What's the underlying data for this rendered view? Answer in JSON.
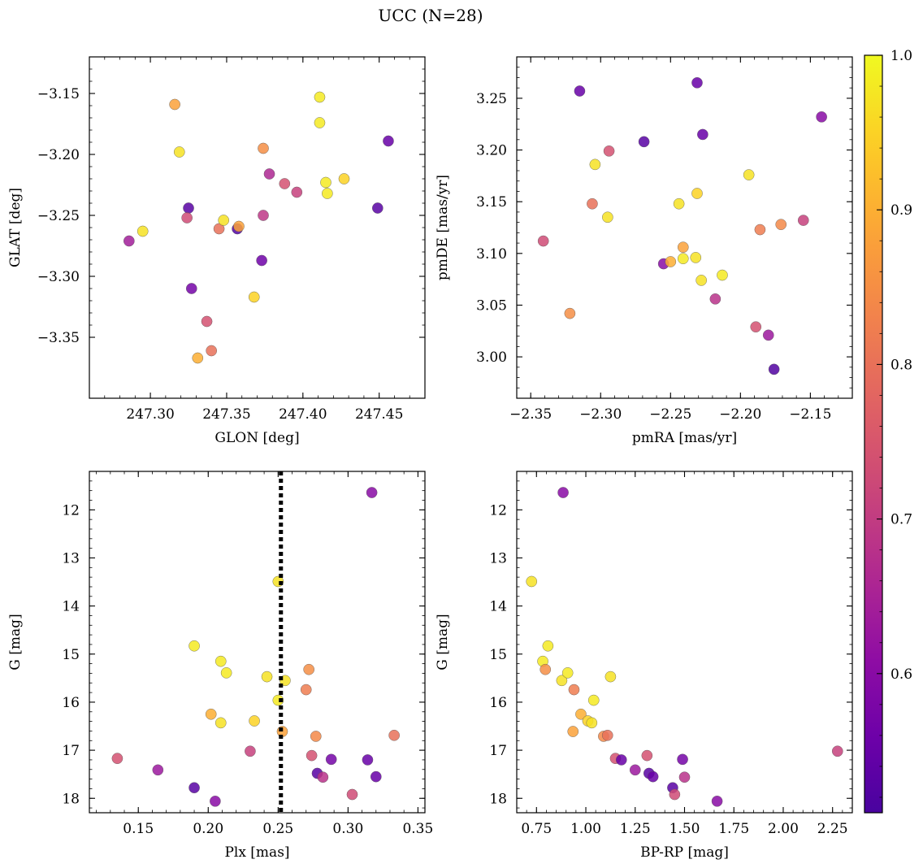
{
  "title": "UCC (N=28)",
  "chart_data": [
    {
      "type": "scatter",
      "xlabel": "GLON [deg]",
      "ylabel": "GLAT [deg]",
      "xlim": [
        247.26,
        247.48
      ],
      "ylim": [
        -3.4,
        -3.12
      ],
      "xticks": [
        247.3,
        247.35,
        247.4,
        247.45
      ],
      "xtick_labels": [
        "247.30",
        "247.35",
        "247.40",
        "247.45"
      ],
      "yticks": [
        -3.15,
        -3.2,
        -3.25,
        -3.3,
        -3.35
      ],
      "ytick_labels": [
        "−3.15",
        "−3.20",
        "−3.25",
        "−3.30",
        "−3.35"
      ],
      "points": [
        {
          "x": 247.286,
          "y": -3.271,
          "c": 0.64
        },
        {
          "x": 247.295,
          "y": -3.263,
          "c": 0.97
        },
        {
          "x": 247.316,
          "y": -3.159,
          "c": 0.88
        },
        {
          "x": 247.319,
          "y": -3.198,
          "c": 0.97
        },
        {
          "x": 247.325,
          "y": -3.244,
          "c": 0.53
        },
        {
          "x": 247.324,
          "y": -3.252,
          "c": 0.73
        },
        {
          "x": 247.327,
          "y": -3.31,
          "c": 0.57
        },
        {
          "x": 247.331,
          "y": -3.367,
          "c": 0.9
        },
        {
          "x": 247.337,
          "y": -3.337,
          "c": 0.74
        },
        {
          "x": 247.34,
          "y": -3.361,
          "c": 0.8
        },
        {
          "x": 247.345,
          "y": -3.261,
          "c": 0.8
        },
        {
          "x": 247.348,
          "y": -3.254,
          "c": 0.97
        },
        {
          "x": 247.357,
          "y": -3.261,
          "c": 0.52
        },
        {
          "x": 247.358,
          "y": -3.259,
          "c": 0.88
        },
        {
          "x": 247.368,
          "y": -3.317,
          "c": 0.95
        },
        {
          "x": 247.373,
          "y": -3.287,
          "c": 0.56
        },
        {
          "x": 247.374,
          "y": -3.25,
          "c": 0.69
        },
        {
          "x": 247.374,
          "y": -3.195,
          "c": 0.85
        },
        {
          "x": 247.378,
          "y": -3.216,
          "c": 0.66
        },
        {
          "x": 247.388,
          "y": -3.224,
          "c": 0.74
        },
        {
          "x": 247.396,
          "y": -3.231,
          "c": 0.71
        },
        {
          "x": 247.411,
          "y": -3.153,
          "c": 0.98
        },
        {
          "x": 247.411,
          "y": -3.174,
          "c": 0.98
        },
        {
          "x": 247.415,
          "y": -3.223,
          "c": 0.98
        },
        {
          "x": 247.416,
          "y": -3.232,
          "c": 0.98
        },
        {
          "x": 247.427,
          "y": -3.22,
          "c": 0.95
        },
        {
          "x": 247.449,
          "y": -3.244,
          "c": 0.53
        },
        {
          "x": 247.456,
          "y": -3.189,
          "c": 0.55
        }
      ]
    },
    {
      "type": "scatter",
      "xlabel": "pmRA [mas/yr]",
      "ylabel": "pmDE [mas/yr]",
      "xlim": [
        -2.36,
        -2.12
      ],
      "ylim": [
        2.96,
        3.29
      ],
      "xticks": [
        -2.35,
        -2.3,
        -2.25,
        -2.2,
        -2.15
      ],
      "xtick_labels": [
        "−2.35",
        "−2.30",
        "−2.25",
        "−2.20",
        "−2.15"
      ],
      "yticks": [
        3.0,
        3.05,
        3.1,
        3.15,
        3.2,
        3.25
      ],
      "ytick_labels": [
        "3.00",
        "3.05",
        "3.10",
        "3.15",
        "3.20",
        "3.25"
      ],
      "points": [
        {
          "x": -2.341,
          "y": 3.112,
          "c": 0.73
        },
        {
          "x": -2.322,
          "y": 3.042,
          "c": 0.85
        },
        {
          "x": -2.315,
          "y": 3.257,
          "c": 0.55
        },
        {
          "x": -2.306,
          "y": 3.148,
          "c": 0.8
        },
        {
          "x": -2.304,
          "y": 3.186,
          "c": 0.97
        },
        {
          "x": -2.295,
          "y": 3.135,
          "c": 0.97
        },
        {
          "x": -2.294,
          "y": 3.199,
          "c": 0.74
        },
        {
          "x": -2.269,
          "y": 3.208,
          "c": 0.53
        },
        {
          "x": -2.255,
          "y": 3.09,
          "c": 0.6
        },
        {
          "x": -2.25,
          "y": 3.092,
          "c": 0.9
        },
        {
          "x": -2.244,
          "y": 3.148,
          "c": 0.97
        },
        {
          "x": -2.241,
          "y": 3.106,
          "c": 0.88
        },
        {
          "x": -2.241,
          "y": 3.095,
          "c": 0.98
        },
        {
          "x": -2.232,
          "y": 3.096,
          "c": 0.97
        },
        {
          "x": -2.231,
          "y": 3.158,
          "c": 0.95
        },
        {
          "x": -2.231,
          "y": 3.265,
          "c": 0.55
        },
        {
          "x": -2.228,
          "y": 3.074,
          "c": 0.97
        },
        {
          "x": -2.227,
          "y": 3.215,
          "c": 0.55
        },
        {
          "x": -2.218,
          "y": 3.056,
          "c": 0.68
        },
        {
          "x": -2.213,
          "y": 3.079,
          "c": 0.98
        },
        {
          "x": -2.194,
          "y": 3.176,
          "c": 0.97
        },
        {
          "x": -2.189,
          "y": 3.029,
          "c": 0.74
        },
        {
          "x": -2.186,
          "y": 3.123,
          "c": 0.82
        },
        {
          "x": -2.18,
          "y": 3.021,
          "c": 0.63
        },
        {
          "x": -2.176,
          "y": 2.988,
          "c": 0.52
        },
        {
          "x": -2.171,
          "y": 3.128,
          "c": 0.84
        },
        {
          "x": -2.155,
          "y": 3.132,
          "c": 0.71
        },
        {
          "x": -2.142,
          "y": 3.232,
          "c": 0.6
        }
      ]
    },
    {
      "type": "scatter",
      "xlabel": "Plx [mas]",
      "ylabel": "G [mag]",
      "xlim": [
        0.115,
        0.355
      ],
      "ylim": [
        18.3,
        11.2
      ],
      "xticks": [
        0.15,
        0.2,
        0.25,
        0.3,
        0.35
      ],
      "xtick_labels": [
        "0.15",
        "0.20",
        "0.25",
        "0.30",
        "0.35"
      ],
      "yticks": [
        12,
        13,
        14,
        15,
        16,
        17,
        18
      ],
      "ytick_labels": [
        "12",
        "13",
        "14",
        "15",
        "16",
        "17",
        "18"
      ],
      "vline": {
        "x": 0.252,
        "style": "dotted",
        "color": "#000000"
      },
      "points": [
        {
          "x": 0.135,
          "y": 17.17,
          "c": 0.74
        },
        {
          "x": 0.164,
          "y": 17.41,
          "c": 0.63
        },
        {
          "x": 0.19,
          "y": 17.78,
          "c": 0.53
        },
        {
          "x": 0.19,
          "y": 14.83,
          "c": 0.98
        },
        {
          "x": 0.202,
          "y": 16.25,
          "c": 0.9
        },
        {
          "x": 0.205,
          "y": 18.06,
          "c": 0.6
        },
        {
          "x": 0.209,
          "y": 15.15,
          "c": 0.98
        },
        {
          "x": 0.209,
          "y": 16.43,
          "c": 0.97
        },
        {
          "x": 0.213,
          "y": 15.39,
          "c": 0.98
        },
        {
          "x": 0.23,
          "y": 17.02,
          "c": 0.71
        },
        {
          "x": 0.233,
          "y": 16.39,
          "c": 0.95
        },
        {
          "x": 0.242,
          "y": 15.47,
          "c": 0.97
        },
        {
          "x": 0.25,
          "y": 13.49,
          "c": 0.97
        },
        {
          "x": 0.25,
          "y": 15.96,
          "c": 0.98
        },
        {
          "x": 0.253,
          "y": 16.61,
          "c": 0.88
        },
        {
          "x": 0.255,
          "y": 15.55,
          "c": 0.97
        },
        {
          "x": 0.27,
          "y": 15.74,
          "c": 0.82
        },
        {
          "x": 0.272,
          "y": 15.32,
          "c": 0.85
        },
        {
          "x": 0.274,
          "y": 17.11,
          "c": 0.74
        },
        {
          "x": 0.277,
          "y": 16.71,
          "c": 0.84
        },
        {
          "x": 0.278,
          "y": 17.48,
          "c": 0.53
        },
        {
          "x": 0.282,
          "y": 17.56,
          "c": 0.68
        },
        {
          "x": 0.288,
          "y": 17.19,
          "c": 0.57
        },
        {
          "x": 0.303,
          "y": 17.92,
          "c": 0.73
        },
        {
          "x": 0.314,
          "y": 17.2,
          "c": 0.55
        },
        {
          "x": 0.317,
          "y": 11.64,
          "c": 0.6
        },
        {
          "x": 0.32,
          "y": 17.55,
          "c": 0.55
        },
        {
          "x": 0.333,
          "y": 16.69,
          "c": 0.8
        }
      ]
    },
    {
      "type": "scatter",
      "xlabel": "BP-RP [mag]",
      "ylabel": "G [mag]",
      "xlim": [
        0.65,
        2.35
      ],
      "ylim": [
        18.3,
        11.2
      ],
      "xticks": [
        0.75,
        1.0,
        1.25,
        1.5,
        1.75,
        2.0,
        2.25
      ],
      "xtick_labels": [
        "0.75",
        "1.00",
        "1.25",
        "1.50",
        "1.75",
        "2.00",
        "2.25"
      ],
      "yticks": [
        12,
        13,
        14,
        15,
        16,
        17,
        18
      ],
      "ytick_labels": [
        "12",
        "13",
        "14",
        "15",
        "16",
        "17",
        "18"
      ],
      "points": [
        {
          "x": 0.725,
          "y": 13.49,
          "c": 0.97
        },
        {
          "x": 0.782,
          "y": 15.15,
          "c": 0.98
        },
        {
          "x": 0.795,
          "y": 15.32,
          "c": 0.85
        },
        {
          "x": 0.808,
          "y": 14.83,
          "c": 0.98
        },
        {
          "x": 0.878,
          "y": 15.55,
          "c": 0.97
        },
        {
          "x": 0.885,
          "y": 11.64,
          "c": 0.6
        },
        {
          "x": 0.908,
          "y": 15.39,
          "c": 0.98
        },
        {
          "x": 0.935,
          "y": 16.61,
          "c": 0.88
        },
        {
          "x": 0.94,
          "y": 15.74,
          "c": 0.82
        },
        {
          "x": 0.975,
          "y": 16.25,
          "c": 0.9
        },
        {
          "x": 1.01,
          "y": 16.39,
          "c": 0.95
        },
        {
          "x": 1.03,
          "y": 16.43,
          "c": 0.97
        },
        {
          "x": 1.04,
          "y": 15.96,
          "c": 0.98
        },
        {
          "x": 1.09,
          "y": 16.71,
          "c": 0.84
        },
        {
          "x": 1.11,
          "y": 16.69,
          "c": 0.8
        },
        {
          "x": 1.125,
          "y": 15.47,
          "c": 0.97
        },
        {
          "x": 1.15,
          "y": 17.17,
          "c": 0.74
        },
        {
          "x": 1.18,
          "y": 17.2,
          "c": 0.55
        },
        {
          "x": 1.25,
          "y": 17.41,
          "c": 0.63
        },
        {
          "x": 1.31,
          "y": 17.11,
          "c": 0.74
        },
        {
          "x": 1.32,
          "y": 17.48,
          "c": 0.53
        },
        {
          "x": 1.34,
          "y": 17.55,
          "c": 0.55
        },
        {
          "x": 1.44,
          "y": 17.78,
          "c": 0.53
        },
        {
          "x": 1.45,
          "y": 17.92,
          "c": 0.73
        },
        {
          "x": 1.49,
          "y": 17.19,
          "c": 0.57
        },
        {
          "x": 1.5,
          "y": 17.56,
          "c": 0.68
        },
        {
          "x": 1.665,
          "y": 18.06,
          "c": 0.6
        },
        {
          "x": 2.275,
          "y": 17.02,
          "c": 0.71
        }
      ]
    }
  ],
  "colorbar": {
    "colormap": "plasma",
    "range": [
      0.51,
      1.0
    ],
    "ticks": [
      0.6,
      0.7,
      0.8,
      0.9,
      1.0
    ],
    "tick_labels": [
      "0.6",
      "0.7",
      "0.8",
      "0.9",
      "1.0"
    ]
  }
}
